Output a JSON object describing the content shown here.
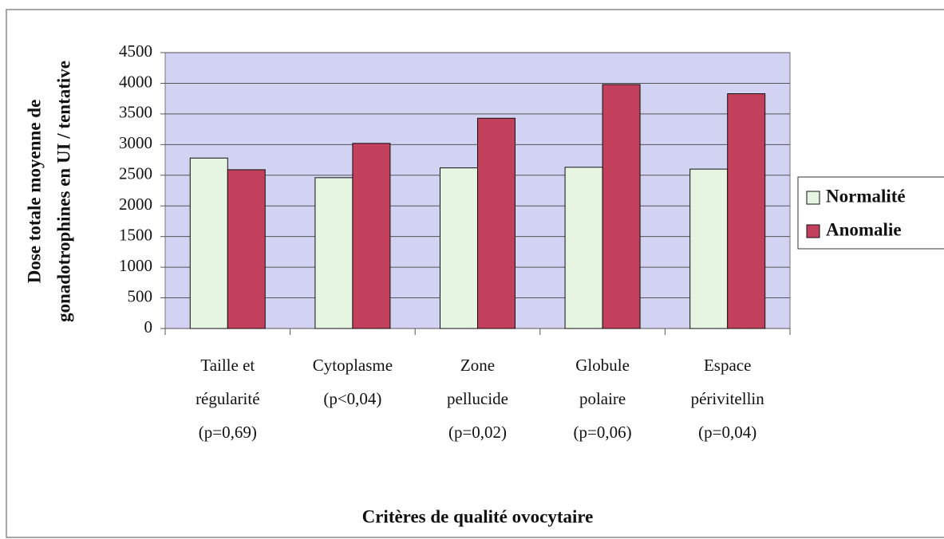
{
  "chart_data": {
    "type": "bar",
    "categories": [
      [
        "Taille et",
        "régularité",
        "(p=0,69)"
      ],
      [
        "Cytoplasme",
        "(p<0,04)"
      ],
      [
        "Zone",
        "pellucide",
        "(p=0,02)"
      ],
      [
        "Globule",
        "polaire",
        "(p=0,06)"
      ],
      [
        "Espace",
        "périvitellin",
        "(p=0,04)"
      ]
    ],
    "series": [
      {
        "name": "Normalité",
        "color": "#e6f4e2",
        "values": [
          2780,
          2460,
          2620,
          2630,
          2600
        ]
      },
      {
        "name": "Anomalie",
        "color": "#c2405c",
        "values": [
          2590,
          3020,
          3430,
          3980,
          3830
        ]
      }
    ],
    "ylim": [
      0,
      4500
    ],
    "yticks": [
      0,
      500,
      1000,
      1500,
      2000,
      2500,
      3000,
      3500,
      4000,
      4500
    ],
    "grid": true,
    "legend": "right",
    "x_label": "Critères de qualité ovocytaire",
    "y_label": [
      "Dose totale moyenne de",
      "gonadotrophines  en UI / tentative"
    ]
  }
}
